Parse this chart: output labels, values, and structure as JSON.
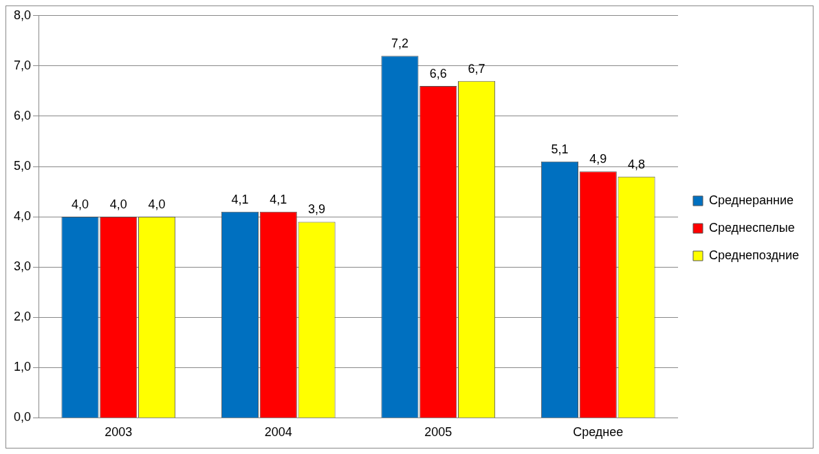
{
  "chart_data": {
    "type": "bar",
    "categories": [
      "2003",
      "2004",
      "2005",
      "Среднее"
    ],
    "series": [
      {
        "name": "Среднеранние",
        "color": "#0070c0",
        "values": [
          4.0,
          4.1,
          7.2,
          5.1
        ],
        "value_labels": [
          "4,0",
          "4,1",
          "7,2",
          "5,1"
        ]
      },
      {
        "name": "Среднеспелые",
        "color": "#ff0000",
        "values": [
          4.0,
          4.1,
          6.6,
          4.9
        ],
        "value_labels": [
          "4,0",
          "4,1",
          "6,6",
          "4,9"
        ]
      },
      {
        "name": "Среднепоздние",
        "color": "#ffff00",
        "values": [
          4.0,
          3.9,
          6.7,
          4.8
        ],
        "value_labels": [
          "4,0",
          "3,9",
          "6,7",
          "4,8"
        ]
      }
    ],
    "ylim": [
      0,
      8
    ],
    "yticks": [
      {
        "value": 0,
        "label": "0,0"
      },
      {
        "value": 1,
        "label": "1,0"
      },
      {
        "value": 2,
        "label": "2,0"
      },
      {
        "value": 3,
        "label": "3,0"
      },
      {
        "value": 4,
        "label": "4,0"
      },
      {
        "value": 5,
        "label": "5,0"
      },
      {
        "value": 6,
        "label": "6,0"
      },
      {
        "value": 7,
        "label": "7,0"
      },
      {
        "value": 8,
        "label": "8,0"
      }
    ],
    "grid": "y",
    "legend": "right"
  }
}
